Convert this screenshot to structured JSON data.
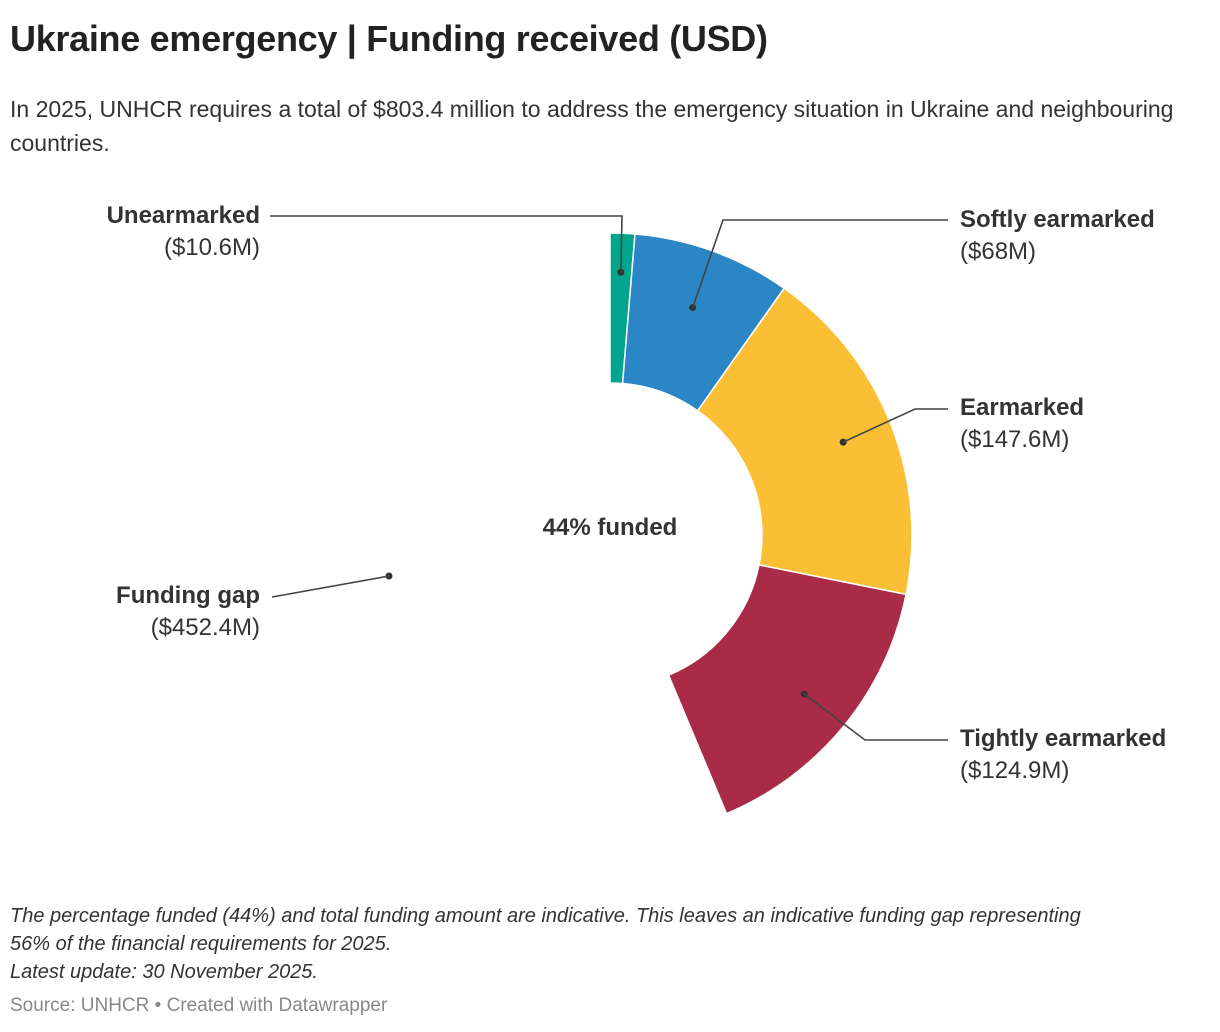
{
  "header": {
    "title": "Ukraine emergency | Funding received (USD)",
    "subtitle": "In 2025, UNHCR requires a total of $803.4 million to address the emergency situation in Ukraine and neighbouring countries."
  },
  "chart_data": {
    "type": "pie",
    "variant": "donut",
    "title": "Ukraine emergency | Funding received (USD)",
    "unit": "USD million",
    "total": 803.4,
    "center_label": "44% funded",
    "slices": [
      {
        "name": "Unearmarked",
        "value": 10.6,
        "label": "($10.6M)",
        "color": "#00a58d"
      },
      {
        "name": "Softly earmarked",
        "value": 68,
        "label": "($68M)",
        "color": "#2a86c5"
      },
      {
        "name": "Earmarked",
        "value": 147.6,
        "label": "($147.6M)",
        "color": "#fbbf35"
      },
      {
        "name": "Tightly earmarked",
        "value": 124.9,
        "label": "($124.9M)",
        "color": "#aa2b47"
      },
      {
        "name": "Funding gap",
        "value": 452.4,
        "label": "($452.4M)",
        "color": "#ffffff"
      }
    ]
  },
  "footer": {
    "note_line1": "The percentage funded (44%) and total funding amount are indicative. This leaves an indicative funding gap representing",
    "note_line2": "56% of the financial requirements for 2025.",
    "note_line3": "Latest update: 30 November 2025.",
    "source": "Source: UNHCR • Created with Datawrapper"
  }
}
